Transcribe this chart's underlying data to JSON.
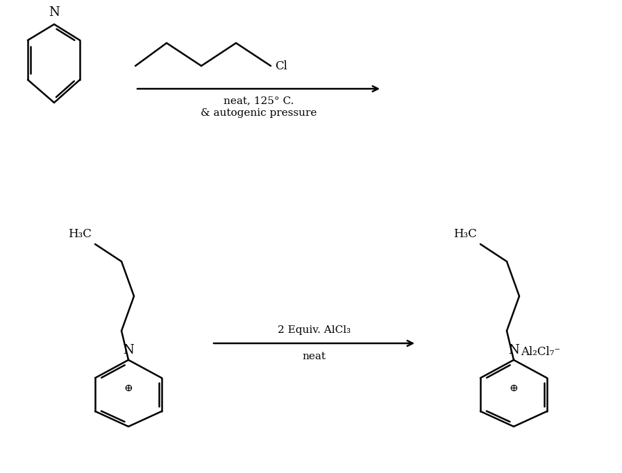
{
  "bg_color": "#ffffff",
  "line_color": "#000000",
  "lw": 1.8,
  "font_family": "serif",
  "fig_width": 8.96,
  "fig_height": 6.82,
  "arrow_label1_l1": "neat, 125° C.",
  "arrow_label1_l2": "& autogenic pressure",
  "arrow_label2_l1": "2 Equiv. AlCl₃",
  "arrow_label2_l2": "neat",
  "label_N": "N",
  "label_plus": "⊕",
  "label_H3C": "H₃C",
  "label_Cl": "Cl",
  "label_Al2Cl7": "Al₂Cl₇⁻"
}
